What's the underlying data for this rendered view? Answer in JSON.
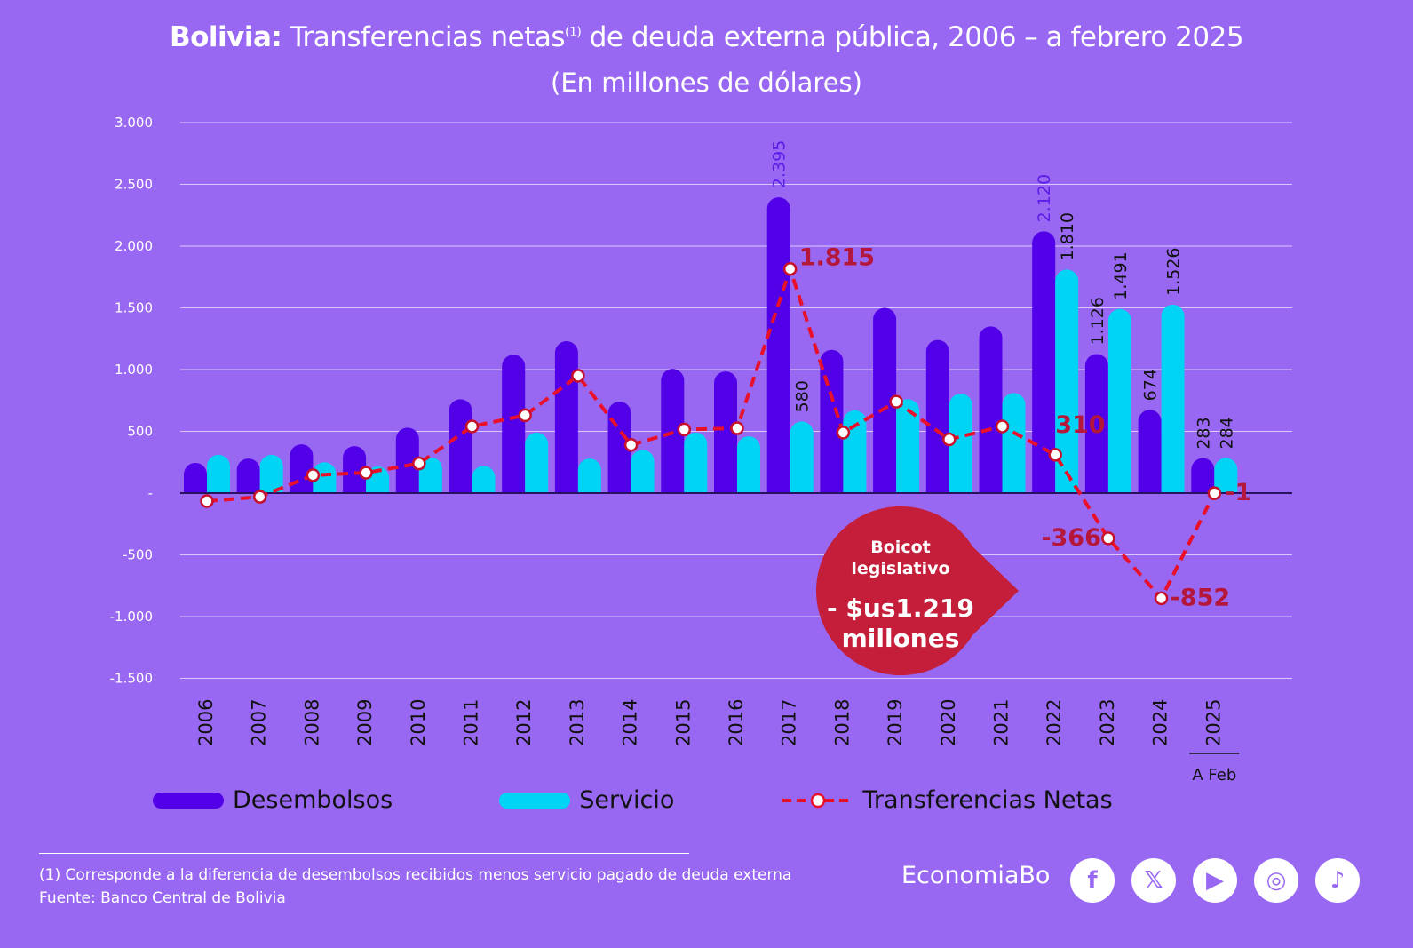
{
  "title": {
    "bold": "Bolivia:",
    "text": " Transferencias netas",
    "sup": "(1)",
    "rest": " de deuda externa pública, 2006 – a febrero 2025",
    "subtitle": "(En millones de dólares)"
  },
  "chart_data": {
    "type": "bar",
    "categories": [
      "2006",
      "2007",
      "2008",
      "2009",
      "2010",
      "2011",
      "2012",
      "2013",
      "2014",
      "2015",
      "2016",
      "2017",
      "2018",
      "2019",
      "2020",
      "2021",
      "2022",
      "2023",
      "2024",
      "2025"
    ],
    "category_note": "A Feb",
    "ylim": [
      -1500,
      3000
    ],
    "yticks": [
      3000,
      2500,
      2000,
      1500,
      1000,
      500,
      0,
      -500,
      -1000,
      -1500
    ],
    "ytick_labels": [
      "3.000",
      "2.500",
      "2.000",
      "1.500",
      "1.000",
      "500",
      "-",
      "-500",
      "-1.000",
      "-1.500"
    ],
    "grid": true,
    "legend_placement": "bottom",
    "series": [
      {
        "name": "Desembolsos",
        "type": "bar",
        "color": "#5200e8",
        "values": [
          245,
          280,
          395,
          380,
          530,
          760,
          1120,
          1230,
          740,
          1005,
          985,
          2395,
          1160,
          1500,
          1240,
          1350,
          2120,
          1126,
          674,
          283
        ],
        "labels": {
          "11": "2.395",
          "16": "2.120",
          "17": "1.126",
          "18": "674",
          "19": "283"
        }
      },
      {
        "name": "Servicio",
        "type": "bar",
        "color": "#00d4f5",
        "values": [
          310,
          310,
          250,
          215,
          290,
          220,
          490,
          280,
          350,
          490,
          460,
          580,
          670,
          760,
          805,
          810,
          1810,
          1491,
          1526,
          284
        ],
        "labels": {
          "11": "580",
          "16": "1.810",
          "17": "1.491",
          "18": "1.526",
          "19": "284"
        }
      },
      {
        "name": "Transferencias Netas",
        "type": "line",
        "color": "#e8102a",
        "values": [
          -65,
          -30,
          145,
          165,
          240,
          540,
          630,
          950,
          390,
          515,
          525,
          1815,
          490,
          740,
          435,
          540,
          310,
          -366,
          -852,
          -1
        ],
        "labels": {
          "11": "1.815",
          "16": "310",
          "17": "-366",
          "18": "-852",
          "19": "-1"
        }
      }
    ],
    "annotation": {
      "line1": "Boicot",
      "line2": "legislativo",
      "line3": "- $us1.219",
      "line4": "millones",
      "color": "#c41e3a"
    }
  },
  "footer": {
    "note": "(1) Corresponde a la diferencia de desembolsos recibidos menos servicio pagado de deuda externa",
    "source": "Fuente: Banco Central de Bolivia",
    "brand": "EconomiaBo",
    "social": [
      "facebook-icon",
      "x-icon",
      "youtube-icon",
      "instagram-icon",
      "tiktok-icon"
    ]
  }
}
